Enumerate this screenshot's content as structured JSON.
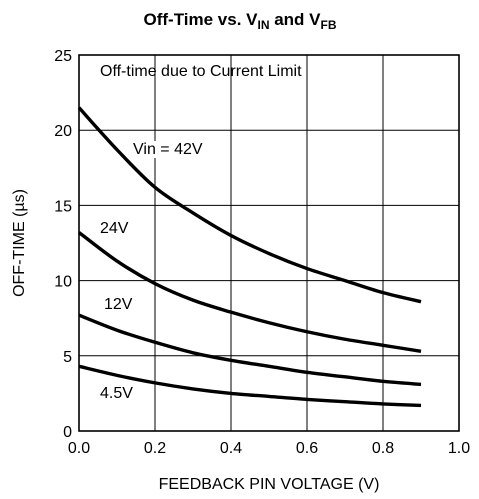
{
  "chart_data": {
    "type": "line",
    "title": {
      "prefix": "Off-Time vs. V",
      "sub1": "IN",
      "middle": " and V",
      "sub2": "FB"
    },
    "xlabel": "FEEDBACK PIN VOLTAGE (V)",
    "ylabel": "OFF-TIME (µs)",
    "xlim": [
      0,
      1.0
    ],
    "ylim": [
      0,
      25
    ],
    "x_ticks": [
      "0.0",
      "0.2",
      "0.4",
      "0.6",
      "0.8",
      "1.0"
    ],
    "y_ticks": [
      "0",
      "5",
      "10",
      "15",
      "20",
      "25"
    ],
    "grid": true,
    "annotation": "Off-time due to Current Limit",
    "series": [
      {
        "name": "Vin = 42V",
        "x": [
          0.0,
          0.1,
          0.2,
          0.3,
          0.4,
          0.5,
          0.6,
          0.7,
          0.8,
          0.9
        ],
        "values": [
          21.5,
          18.7,
          16.2,
          14.5,
          13.0,
          11.8,
          10.8,
          10.0,
          9.2,
          8.6
        ]
      },
      {
        "name": "24V",
        "x": [
          0.0,
          0.1,
          0.2,
          0.3,
          0.4,
          0.5,
          0.6,
          0.7,
          0.8,
          0.9
        ],
        "values": [
          13.2,
          11.3,
          9.8,
          8.7,
          7.9,
          7.2,
          6.6,
          6.1,
          5.7,
          5.3
        ]
      },
      {
        "name": "12V",
        "x": [
          0.0,
          0.1,
          0.2,
          0.3,
          0.4,
          0.5,
          0.6,
          0.7,
          0.8,
          0.9
        ],
        "values": [
          7.7,
          6.7,
          5.9,
          5.2,
          4.7,
          4.3,
          3.9,
          3.6,
          3.3,
          3.1
        ]
      },
      {
        "name": "4.5V",
        "x": [
          0.0,
          0.1,
          0.2,
          0.3,
          0.4,
          0.5,
          0.6,
          0.7,
          0.8,
          0.9
        ],
        "values": [
          4.3,
          3.7,
          3.2,
          2.8,
          2.5,
          2.3,
          2.1,
          1.95,
          1.8,
          1.7
        ]
      }
    ]
  }
}
